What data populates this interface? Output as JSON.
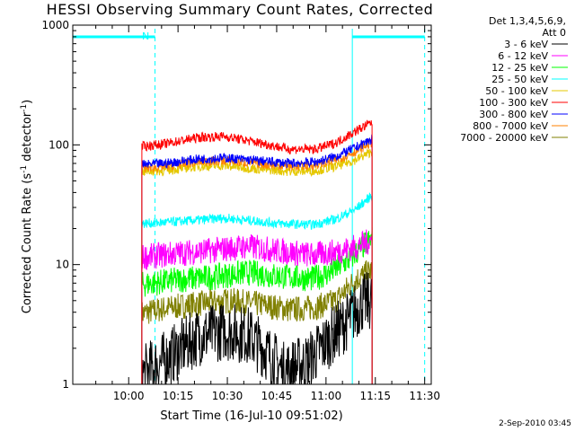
{
  "chart_data": {
    "type": "line",
    "title": "HESSI Observing Summary Count Rates, Corrected",
    "xlabel": "Start Time (16-Jul-10 09:51:02)",
    "ylabel": "Corrected Count Rate (s",
    "ylabel_sup1": "-1",
    "ylabel_mid": " detector",
    "ylabel_sup2": "-1",
    "ylabel_end": ")",
    "yscale": "log",
    "ylim": [
      1,
      1000
    ],
    "xlim_minutes": [
      -8,
      101
    ],
    "x_ticks": [
      {
        "label": "10:00",
        "min": 9
      },
      {
        "label": "10:15",
        "min": 24
      },
      {
        "label": "10:30",
        "min": 39
      },
      {
        "label": "10:45",
        "min": 54
      },
      {
        "label": "11:00",
        "min": 69
      },
      {
        "label": "11:15",
        "min": 84
      },
      {
        "label": "11:30",
        "min": 99
      }
    ],
    "y_ticks": [
      {
        "label": "1",
        "value": 1
      },
      {
        "label": "10",
        "value": 10
      },
      {
        "label": "100",
        "value": 100
      },
      {
        "label": "1000",
        "value": 1000
      }
    ],
    "legend_header": [
      "Det 1,3,4,5,6,9,",
      "Att 0"
    ],
    "night_marker": "N",
    "data_range_min": [
      13,
      83
    ],
    "spacecraft_night_min": [
      [
        -8,
        17
      ],
      [
        77,
        99
      ]
    ],
    "series": [
      {
        "name": "3 - 6 keV",
        "color": "#000000",
        "anchors": [
          [
            13,
            1.2
          ],
          [
            20,
            1.6
          ],
          [
            30,
            2.5
          ],
          [
            38,
            2.8
          ],
          [
            45,
            2.6
          ],
          [
            50,
            2.0
          ],
          [
            56,
            1.3
          ],
          [
            63,
            1.5
          ],
          [
            70,
            2.4
          ],
          [
            76,
            3.5
          ],
          [
            80,
            4.8
          ],
          [
            83,
            5.0
          ]
        ]
      },
      {
        "name": "6 - 12 keV",
        "color": "#ff00ff",
        "anchors": [
          [
            13,
            11.5
          ],
          [
            25,
            12.5
          ],
          [
            35,
            13.2
          ],
          [
            45,
            14.2
          ],
          [
            55,
            13
          ],
          [
            65,
            12.0
          ],
          [
            72,
            12.8
          ],
          [
            78,
            14
          ],
          [
            83,
            16
          ]
        ]
      },
      {
        "name": "12 - 25 keV",
        "color": "#00ff00",
        "anchors": [
          [
            13,
            6.8
          ],
          [
            25,
            7.5
          ],
          [
            35,
            7.9
          ],
          [
            45,
            8.6
          ],
          [
            55,
            8.0
          ],
          [
            65,
            7.6
          ],
          [
            70,
            8.5
          ],
          [
            76,
            11
          ],
          [
            80,
            14
          ],
          [
            83,
            16.5
          ]
        ]
      },
      {
        "name": "25 - 50 keV",
        "color": "#00ffff",
        "anchors": [
          [
            13,
            22
          ],
          [
            20,
            22.5
          ],
          [
            30,
            23.5
          ],
          [
            38,
            24.5
          ],
          [
            45,
            23.5
          ],
          [
            55,
            22.0
          ],
          [
            65,
            21.5
          ],
          [
            72,
            24
          ],
          [
            78,
            29
          ],
          [
            83,
            38
          ]
        ]
      },
      {
        "name": "50 - 100 keV",
        "color": "#e5c800",
        "anchors": [
          [
            13,
            60
          ],
          [
            20,
            61
          ],
          [
            30,
            66
          ],
          [
            38,
            67
          ],
          [
            48,
            63
          ],
          [
            58,
            60
          ],
          [
            66,
            61
          ],
          [
            72,
            66
          ],
          [
            78,
            75
          ],
          [
            83,
            88
          ]
        ]
      },
      {
        "name": "100 - 300 keV",
        "color": "#ff0000",
        "anchors": [
          [
            13,
            97
          ],
          [
            20,
            102
          ],
          [
            30,
            115
          ],
          [
            38,
            118
          ],
          [
            48,
            105
          ],
          [
            58,
            92
          ],
          [
            66,
            92
          ],
          [
            72,
            104
          ],
          [
            78,
            130
          ],
          [
            83,
            155
          ]
        ]
      },
      {
        "name": "300 - 800 keV",
        "color": "#0000ff",
        "anchors": [
          [
            13,
            68
          ],
          [
            20,
            70
          ],
          [
            30,
            76
          ],
          [
            38,
            78
          ],
          [
            48,
            74
          ],
          [
            58,
            70
          ],
          [
            66,
            72
          ],
          [
            72,
            80
          ],
          [
            78,
            95
          ],
          [
            83,
            112
          ]
        ]
      },
      {
        "name": "800 - 7000 keV",
        "color": "#ff8000",
        "anchors": [
          [
            13,
            64
          ],
          [
            20,
            66
          ],
          [
            30,
            72
          ],
          [
            38,
            74
          ],
          [
            48,
            70
          ],
          [
            58,
            66
          ],
          [
            66,
            68
          ],
          [
            72,
            75
          ],
          [
            78,
            88
          ],
          [
            83,
            105
          ]
        ]
      },
      {
        "name": "7000 - 20000 keV",
        "color": "#808000",
        "anchors": [
          [
            13,
            3.9
          ],
          [
            20,
            4.3
          ],
          [
            30,
            4.7
          ],
          [
            40,
            5.0
          ],
          [
            50,
            4.6
          ],
          [
            58,
            4.2
          ],
          [
            66,
            4.4
          ],
          [
            72,
            5.0
          ],
          [
            78,
            7.5
          ],
          [
            83,
            9.0
          ]
        ]
      }
    ]
  },
  "timestamp": "2-Sep-2010 03:45"
}
